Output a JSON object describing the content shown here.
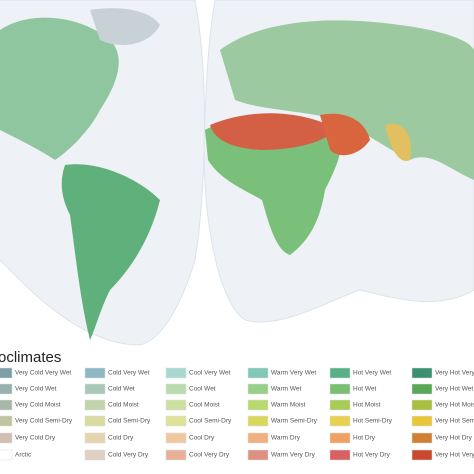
{
  "legend": {
    "title": "oclimates",
    "columns": [
      [
        {
          "label": "Very Cold Very Wet",
          "color": "#7f9fa8"
        },
        {
          "label": "Very Cold Wet",
          "color": "#98b0b0"
        },
        {
          "label": "Very Cold Moist",
          "color": "#a8b8a8"
        },
        {
          "label": "Very Cold Semi-Dry",
          "color": "#c0c4a0"
        },
        {
          "label": "Very Cold Dry",
          "color": "#d0c0b0"
        },
        {
          "label": "Arctic",
          "color": "#ffffff"
        }
      ],
      [
        {
          "label": "Cold Very Wet",
          "color": "#8fb8c4"
        },
        {
          "label": "Cold Wet",
          "color": "#a8c8b8"
        },
        {
          "label": "Cold Moist",
          "color": "#c2d4ac"
        },
        {
          "label": "Cold Semi-Dry",
          "color": "#d8dca0"
        },
        {
          "label": "Cold Dry",
          "color": "#e4d4b0"
        },
        {
          "label": "Cold Very Dry",
          "color": "#e0d0c4"
        }
      ],
      [
        {
          "label": "Cool Very Wet",
          "color": "#a8d8d0"
        },
        {
          "label": "Cool Wet",
          "color": "#b8dcb0"
        },
        {
          "label": "Cool Moist",
          "color": "#cce0a0"
        },
        {
          "label": "Cool Semi-Dry",
          "color": "#e0e098"
        },
        {
          "label": "Cool Dry",
          "color": "#f0c8a0"
        },
        {
          "label": "Cool Very Dry",
          "color": "#e8b098"
        }
      ],
      [
        {
          "label": "Warm Very Wet",
          "color": "#80c8b8"
        },
        {
          "label": "Warm Wet",
          "color": "#98d088"
        },
        {
          "label": "Warm Moist",
          "color": "#b8d870"
        },
        {
          "label": "Warm Semi-Dry",
          "color": "#d8d860"
        },
        {
          "label": "Warm Dry",
          "color": "#f0b080"
        },
        {
          "label": "Warm Very Dry",
          "color": "#e09080"
        }
      ],
      [
        {
          "label": "Hot Very Wet",
          "color": "#58b088"
        },
        {
          "label": "Hot Wet",
          "color": "#78c070"
        },
        {
          "label": "Hot Moist",
          "color": "#a8cc58"
        },
        {
          "label": "Hot Semi-Dry",
          "color": "#e8d050"
        },
        {
          "label": "Hot Dry",
          "color": "#f0a060"
        },
        {
          "label": "Hot Very Dry",
          "color": "#d86060"
        }
      ],
      [
        {
          "label": "Very Hot Very Wet",
          "color": "#3a9070"
        },
        {
          "label": "Very Hot Wet",
          "color": "#58a858"
        },
        {
          "label": "Very Hot Moist",
          "color": "#a8c040"
        },
        {
          "label": "Very Hot Semi-Dry",
          "color": "#e8c838"
        },
        {
          "label": "Very Hot Dry",
          "color": "#d08030"
        },
        {
          "label": "Very Hot Very Dry",
          "color": "#c84830"
        }
      ]
    ]
  }
}
